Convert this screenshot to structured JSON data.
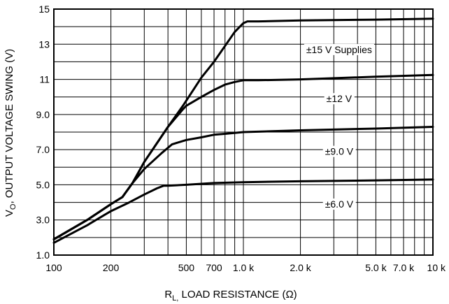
{
  "chart_data": {
    "type": "line",
    "xscale": "log",
    "xlim": [
      100,
      10000
    ],
    "ylim": [
      1.0,
      15
    ],
    "grid": true,
    "xlabel": {
      "main": "R",
      "sub": "L,",
      "rest": " LOAD RESISTANCE (Ω)"
    },
    "ylabel": {
      "main": "V",
      "sub": "O",
      "rest": ", OUTPUT VOLTAGE SWING (V)"
    },
    "xticks": [
      {
        "v": 100,
        "label": "100"
      },
      {
        "v": 200,
        "label": "200"
      },
      {
        "v": 500,
        "label": "500"
      },
      {
        "v": 700,
        "label": "700"
      },
      {
        "v": 1000,
        "label": "1.0 k"
      },
      {
        "v": 2000,
        "label": "2.0 k"
      },
      {
        "v": 5000,
        "label": "5.0 k"
      },
      {
        "v": 7000,
        "label": "7.0 k"
      },
      {
        "v": 10000,
        "label": "10 k"
      }
    ],
    "yticks": [
      {
        "v": 1.0,
        "label": "1.0"
      },
      {
        "v": 3.0,
        "label": "3.0"
      },
      {
        "v": 5.0,
        "label": "5.0"
      },
      {
        "v": 7.0,
        "label": "7.0"
      },
      {
        "v": 9.0,
        "label": "9.0"
      },
      {
        "v": 11,
        "label": "11"
      },
      {
        "v": 13,
        "label": "13"
      },
      {
        "v": 15,
        "label": "15"
      }
    ],
    "series": [
      {
        "name": "±15 V Supplies",
        "x": [
          100,
          150,
          200,
          230,
          260,
          300,
          400,
          480,
          600,
          700,
          800,
          900,
          1000,
          1050,
          1200,
          2000,
          5000,
          10000
        ],
        "y": [
          1.9,
          3.0,
          3.9,
          4.3,
          5.1,
          6.3,
          8.3,
          9.5,
          11.1,
          12.0,
          12.9,
          13.7,
          14.2,
          14.3,
          14.3,
          14.35,
          14.4,
          14.45
        ]
      },
      {
        "name": "±12 V",
        "x": [
          100,
          150,
          200,
          230,
          260,
          300,
          400,
          480,
          500,
          600,
          700,
          800,
          900,
          1000,
          1200,
          2000,
          5000,
          10000
        ],
        "y": [
          1.9,
          3.0,
          3.9,
          4.3,
          5.1,
          6.3,
          8.3,
          9.3,
          9.5,
          10.0,
          10.4,
          10.7,
          10.85,
          10.95,
          10.95,
          11.0,
          11.15,
          11.25
        ]
      },
      {
        "name": "±9.0 V",
        "x": [
          100,
          150,
          200,
          230,
          260,
          300,
          370,
          420,
          450,
          500,
          600,
          700,
          800,
          1000,
          2000,
          5000,
          10000
        ],
        "y": [
          1.9,
          3.0,
          3.9,
          4.3,
          5.1,
          5.9,
          6.8,
          7.3,
          7.4,
          7.55,
          7.7,
          7.85,
          7.9,
          8.0,
          8.1,
          8.2,
          8.3
        ]
      },
      {
        "name": "±6.0 V",
        "x": [
          100,
          150,
          200,
          250,
          300,
          350,
          380,
          400,
          500,
          700,
          1000,
          2000,
          5000,
          10000
        ],
        "y": [
          1.7,
          2.7,
          3.5,
          4.0,
          4.45,
          4.8,
          4.95,
          4.95,
          5.0,
          5.1,
          5.15,
          5.2,
          5.25,
          5.3
        ]
      }
    ],
    "labels": [
      {
        "text": "±15 V Supplies",
        "x": 3200,
        "y": 12.7
      },
      {
        "text": "±12 V",
        "x": 3200,
        "y": 9.9
      },
      {
        "text": "±9.0 V",
        "x": 3200,
        "y": 6.9
      },
      {
        "text": "±6.0 V",
        "x": 3200,
        "y": 3.9
      }
    ]
  }
}
